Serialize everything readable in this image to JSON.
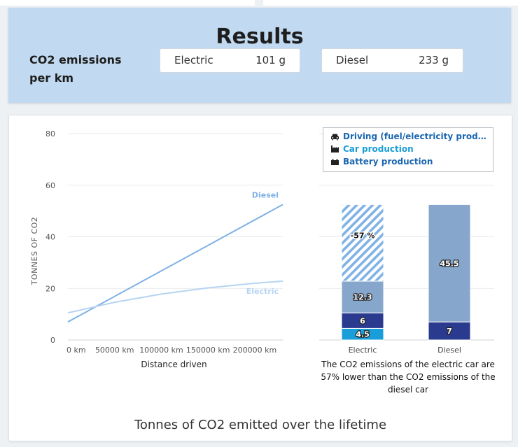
{
  "results": {
    "title": "Results",
    "co2_label": "CO2 emissions per km",
    "electric": {
      "label": "Electric",
      "value": "101 g"
    },
    "diesel": {
      "label": "Diesel",
      "value": "233 g"
    }
  },
  "chart_data": [
    {
      "type": "line",
      "title": "",
      "xlabel": "Distance driven",
      "ylabel": "TONNES OF CO2",
      "xlim": [
        0,
        230000
      ],
      "ylim": [
        0,
        80
      ],
      "x_ticks": [
        0,
        50000,
        100000,
        150000,
        200000
      ],
      "x_tick_labels": [
        "0 km",
        "50000 km",
        "100000 km",
        "150000 km",
        "200000 km"
      ],
      "y_ticks": [
        0,
        20,
        40,
        60,
        80
      ],
      "grid": true,
      "series": [
        {
          "name": "Diesel",
          "color": "#7fb2e5",
          "x": [
            0,
            230000
          ],
          "y": [
            7,
            52.5
          ]
        },
        {
          "name": "Electric",
          "color": "#b6d4f2",
          "x": [
            0,
            50000,
            100000,
            150000,
            200000,
            230000
          ],
          "y": [
            10.5,
            14.6,
            17.8,
            20.2,
            22,
            22.8
          ]
        }
      ]
    },
    {
      "type": "bar",
      "stacked": true,
      "categories": [
        "Electric",
        "Diesel"
      ],
      "ylim": [
        0,
        80
      ],
      "legend": {
        "position": "top",
        "items": [
          {
            "name": "Driving (fuel/electricity production)",
            "icon": "car-icon"
          },
          {
            "name": "Car production",
            "icon": "factory-icon"
          },
          {
            "name": "Battery production",
            "icon": "battery-icon"
          }
        ]
      },
      "series": [
        {
          "name": "Battery production",
          "color": "#1a9ed9",
          "values": [
            4.5,
            0
          ]
        },
        {
          "name": "Car production",
          "color": "#2a3a8f",
          "values": [
            6,
            7
          ]
        },
        {
          "name": "Driving (fuel/electricity production)",
          "color": "#86a6cc",
          "values": [
            12.3,
            45.5
          ]
        }
      ],
      "saving": {
        "category": "Electric",
        "label": "-57 %",
        "color": "#7fb2e5"
      },
      "caption": "The CO2 emissions of the electric car are 57% lower than the CO2 emissions of the diesel car"
    }
  ],
  "bottom_title": "Tonnes of CO2 emitted over the lifetime"
}
